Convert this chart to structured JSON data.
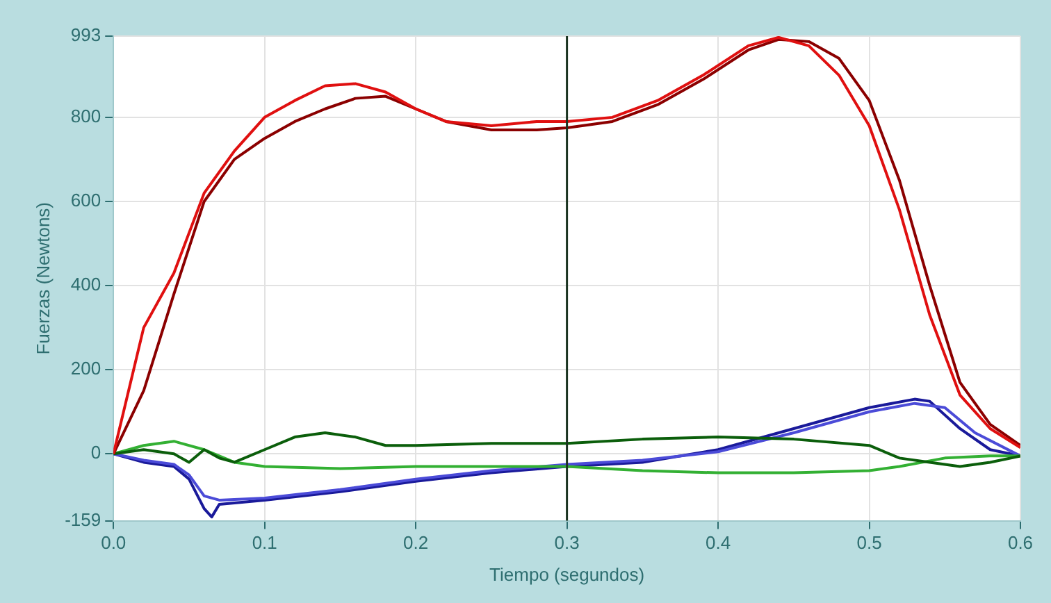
{
  "chart_data": {
    "type": "line",
    "xlabel": "Tiempo (segundos)",
    "ylabel": "Fuerzas (Newtons)",
    "xlim": [
      0,
      0.6
    ],
    "xticks": [
      {
        "value": 0,
        "label": "0.0"
      },
      0.1,
      0.2,
      0.3,
      0.4,
      0.5,
      0.6
    ],
    "ylim": [
      -159,
      993
    ],
    "yticks": [
      -159,
      0,
      200,
      400,
      600,
      800,
      993
    ],
    "grid": true,
    "legend": false,
    "marker": "none",
    "line_style": "solid",
    "ref_lines": [
      {
        "axis": "x",
        "value": 0.3,
        "color": "#1a3320"
      }
    ],
    "series": [
      {
        "color": "#e01010",
        "x": [
          0,
          0.01,
          0.02,
          0.04,
          0.06,
          0.08,
          0.1,
          0.12,
          0.14,
          0.16,
          0.18,
          0.2,
          0.22,
          0.25,
          0.28,
          0.3,
          0.33,
          0.36,
          0.39,
          0.42,
          0.44,
          0.46,
          0.48,
          0.5,
          0.52,
          0.54,
          0.56,
          0.58,
          0.6
        ],
        "values": [
          0,
          150,
          300,
          430,
          620,
          720,
          800,
          840,
          875,
          880,
          860,
          820,
          790,
          780,
          790,
          790,
          800,
          840,
          900,
          970,
          990,
          970,
          900,
          780,
          580,
          330,
          140,
          60,
          15
        ]
      },
      {
        "color": "#8b0000",
        "x": [
          0,
          0.02,
          0.04,
          0.06,
          0.08,
          0.1,
          0.12,
          0.14,
          0.16,
          0.18,
          0.2,
          0.22,
          0.25,
          0.28,
          0.3,
          0.33,
          0.36,
          0.39,
          0.42,
          0.44,
          0.46,
          0.48,
          0.5,
          0.52,
          0.54,
          0.56,
          0.58,
          0.6
        ],
        "values": [
          0,
          150,
          380,
          600,
          700,
          750,
          790,
          820,
          845,
          850,
          820,
          790,
          770,
          770,
          775,
          790,
          830,
          890,
          960,
          985,
          980,
          940,
          840,
          650,
          400,
          170,
          70,
          20
        ]
      },
      {
        "color": "#0b5e0b",
        "x": [
          0,
          0.02,
          0.04,
          0.05,
          0.06,
          0.07,
          0.08,
          0.1,
          0.12,
          0.14,
          0.16,
          0.18,
          0.2,
          0.25,
          0.3,
          0.35,
          0.4,
          0.45,
          0.5,
          0.52,
          0.54,
          0.56,
          0.58,
          0.6
        ],
        "values": [
          0,
          10,
          0,
          -20,
          10,
          -10,
          -20,
          10,
          40,
          50,
          40,
          20,
          20,
          25,
          25,
          35,
          40,
          35,
          20,
          -10,
          -20,
          -30,
          -20,
          -5
        ]
      },
      {
        "color": "#33b033",
        "x": [
          0,
          0.02,
          0.04,
          0.06,
          0.08,
          0.1,
          0.15,
          0.2,
          0.3,
          0.35,
          0.4,
          0.45,
          0.5,
          0.52,
          0.55,
          0.58,
          0.6
        ],
        "values": [
          0,
          20,
          30,
          10,
          -20,
          -30,
          -35,
          -30,
          -30,
          -40,
          -45,
          -45,
          -40,
          -30,
          -10,
          -5,
          -5
        ]
      },
      {
        "color": "#4b4bd8",
        "x": [
          0,
          0.02,
          0.04,
          0.05,
          0.06,
          0.07,
          0.1,
          0.15,
          0.2,
          0.25,
          0.3,
          0.35,
          0.4,
          0.45,
          0.5,
          0.53,
          0.55,
          0.57,
          0.6
        ],
        "values": [
          0,
          -15,
          -25,
          -50,
          -100,
          -110,
          -105,
          -85,
          -60,
          -40,
          -25,
          -15,
          5,
          50,
          100,
          120,
          110,
          50,
          -5
        ]
      },
      {
        "color": "#1a1a9a",
        "x": [
          0,
          0.02,
          0.04,
          0.05,
          0.06,
          0.065,
          0.07,
          0.1,
          0.15,
          0.2,
          0.25,
          0.3,
          0.35,
          0.4,
          0.45,
          0.5,
          0.53,
          0.54,
          0.56,
          0.58,
          0.6
        ],
        "values": [
          0,
          -20,
          -30,
          -60,
          -130,
          -150,
          -120,
          -110,
          -90,
          -65,
          -45,
          -30,
          -20,
          10,
          60,
          110,
          130,
          125,
          60,
          10,
          -5
        ]
      }
    ]
  }
}
